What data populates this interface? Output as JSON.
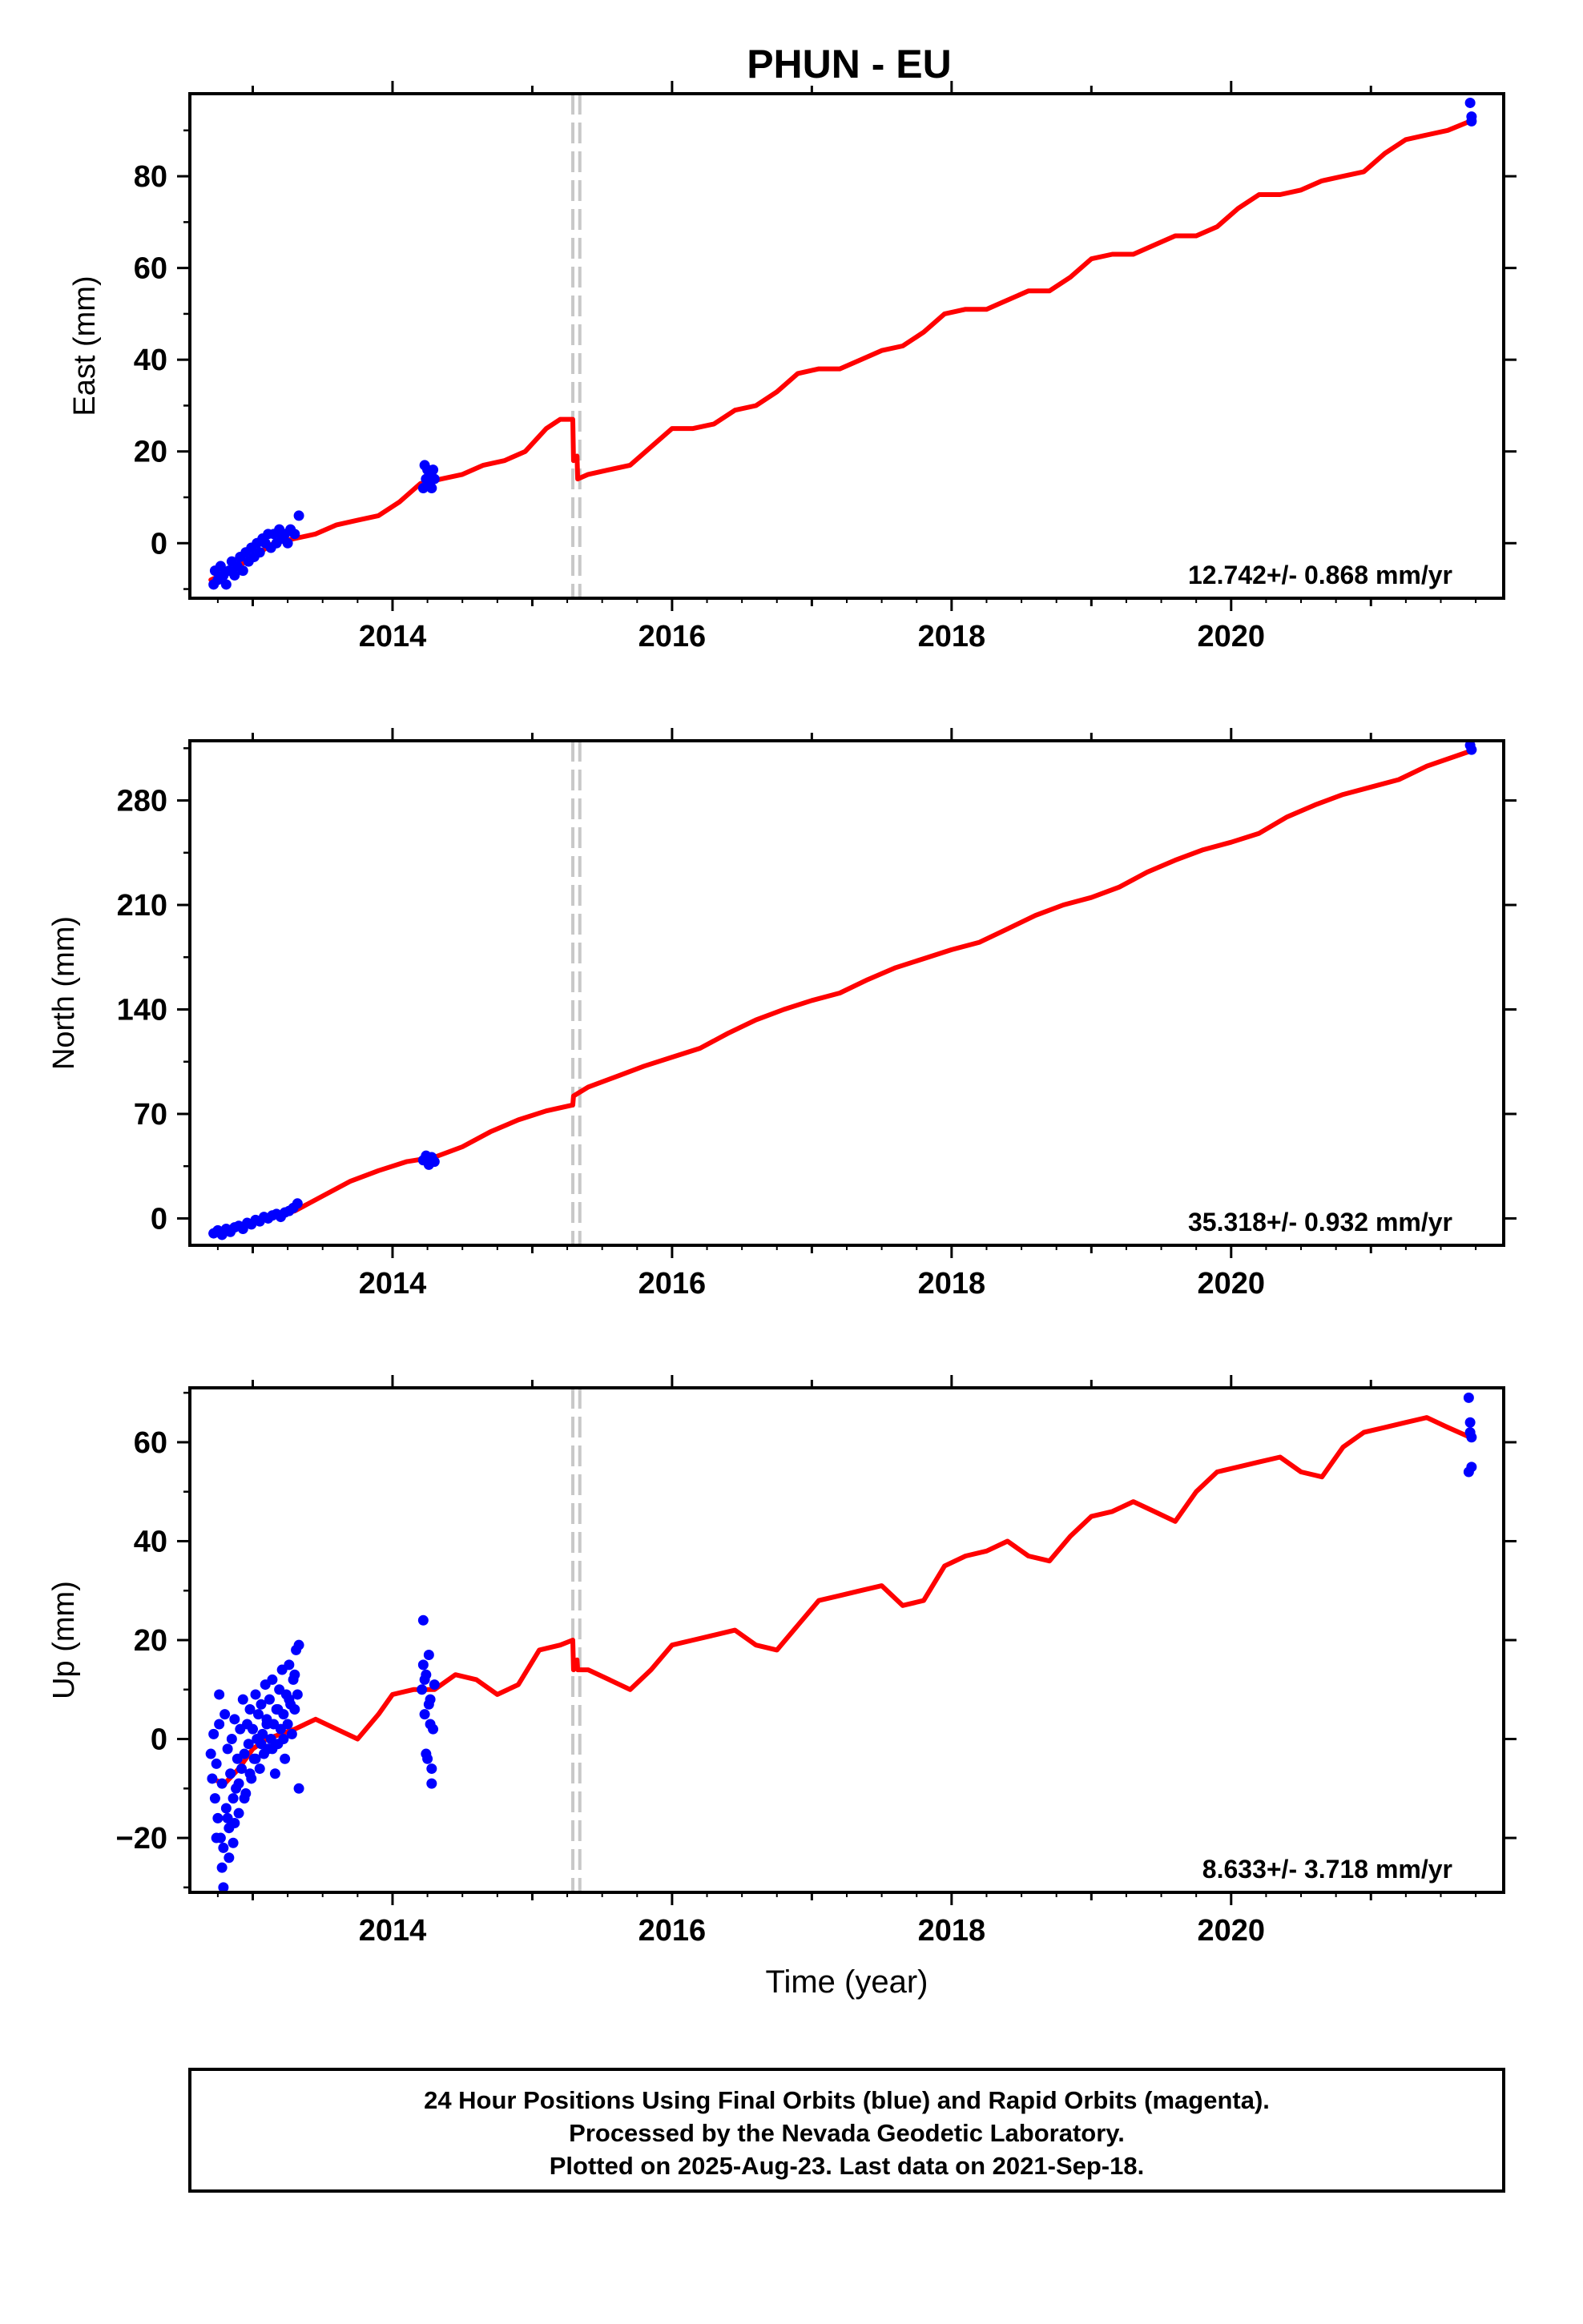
{
  "title": "PHUN - EU",
  "footer": {
    "lines": [
      "24 Hour Positions Using Final Orbits (blue) and Rapid Orbits (magenta).",
      "Processed by the Nevada Geodetic Laboratory.",
      "Plotted on 2025-Aug-23. Last data on 2021-Sep-18."
    ]
  },
  "colors": {
    "fit": "#ff0000",
    "final_orbits": "#0000ff",
    "offset_marker": "#c8c8c8",
    "frame": "#000000"
  },
  "chart_data": [
    {
      "type": "scatter",
      "name": "east",
      "ylabel": "East (mm)",
      "xlabel": "",
      "rate_label": "12.742+/- 0.868 mm/yr",
      "xlim": [
        2012.55,
        2021.95
      ],
      "ylim": [
        -12,
        98
      ],
      "yticks": [
        0,
        20,
        40,
        60,
        80
      ],
      "xticks": [
        2014,
        2016,
        2018,
        2020
      ],
      "offsets": [
        2015.29,
        2015.34
      ],
      "fit": {
        "x": [
          2012.7,
          2012.85,
          2013.0,
          2013.15,
          2013.3,
          2013.45,
          2013.6,
          2013.75,
          2013.9,
          2014.05,
          2014.2,
          2014.35,
          2014.5,
          2014.65,
          2014.8,
          2014.95,
          2015.1,
          2015.2,
          2015.29,
          2015.295,
          2015.32,
          2015.325,
          2015.4,
          2015.55,
          2015.7,
          2015.85,
          2016.0,
          2016.15,
          2016.3,
          2016.45,
          2016.6,
          2016.75,
          2016.9,
          2017.05,
          2017.2,
          2017.35,
          2017.5,
          2017.65,
          2017.8,
          2017.95,
          2018.1,
          2018.25,
          2018.4,
          2018.55,
          2018.7,
          2018.85,
          2019.0,
          2019.15,
          2019.3,
          2019.45,
          2019.6,
          2019.75,
          2019.9,
          2020.05,
          2020.2,
          2020.35,
          2020.5,
          2020.65,
          2020.8,
          2020.95,
          2021.1,
          2021.25,
          2021.4,
          2021.55,
          2021.71
        ],
        "y": [
          -8,
          -6,
          -3,
          0,
          1,
          2,
          4,
          5,
          6,
          9,
          13,
          14,
          15,
          17,
          18,
          20,
          25,
          27,
          27,
          18,
          19,
          14,
          15,
          16,
          17,
          21,
          25,
          25,
          26,
          29,
          30,
          33,
          37,
          38,
          38,
          40,
          42,
          43,
          46,
          50,
          51,
          51,
          53,
          55,
          55,
          58,
          62,
          63,
          63,
          65,
          67,
          67,
          69,
          73,
          76,
          76,
          77,
          79,
          80,
          81,
          85,
          88,
          89,
          90,
          92
        ]
      },
      "points": {
        "x": [
          2012.72,
          2012.73,
          2012.75,
          2012.77,
          2012.79,
          2012.81,
          2012.83,
          2012.85,
          2012.87,
          2012.89,
          2012.91,
          2012.93,
          2012.95,
          2012.97,
          2012.99,
          2013.01,
          2013.03,
          2013.05,
          2013.07,
          2013.09,
          2013.11,
          2013.13,
          2013.15,
          2013.17,
          2013.19,
          2013.21,
          2013.23,
          2013.25,
          2013.27,
          2013.3,
          2013.33,
          2014.22,
          2014.23,
          2014.24,
          2014.25,
          2014.26,
          2014.27,
          2014.28,
          2014.29,
          2014.3,
          2021.71,
          2021.72,
          2021.72
        ],
        "y": [
          -9,
          -6,
          -8,
          -5,
          -7,
          -9,
          -6,
          -4,
          -7,
          -5,
          -3,
          -6,
          -2,
          -4,
          -1,
          -3,
          0,
          -2,
          1,
          0,
          2,
          -1,
          2,
          0,
          3,
          1,
          2,
          0,
          3,
          2,
          6,
          12,
          17,
          14,
          16,
          13,
          15,
          12,
          16,
          14,
          96,
          93,
          92
        ]
      }
    },
    {
      "type": "scatter",
      "name": "north",
      "ylabel": "North (mm)",
      "xlabel": "",
      "rate_label": "35.318+/- 0.932 mm/yr",
      "xlim": [
        2012.55,
        2021.95
      ],
      "ylim": [
        -18,
        320
      ],
      "yticks": [
        0,
        70,
        140,
        210,
        280
      ],
      "xticks": [
        2014,
        2016,
        2018,
        2020
      ],
      "offsets": [
        2015.29,
        2015.34
      ],
      "fit": {
        "x": [
          2012.7,
          2012.9,
          2013.1,
          2013.3,
          2013.5,
          2013.7,
          2013.9,
          2014.1,
          2014.3,
          2014.5,
          2014.7,
          2014.9,
          2015.1,
          2015.29,
          2015.295,
          2015.4,
          2015.6,
          2015.8,
          2016.0,
          2016.2,
          2016.4,
          2016.6,
          2016.8,
          2017.0,
          2017.2,
          2017.4,
          2017.6,
          2017.8,
          2018.0,
          2018.2,
          2018.4,
          2018.6,
          2018.8,
          2019.0,
          2019.2,
          2019.4,
          2019.6,
          2019.8,
          2020.0,
          2020.2,
          2020.4,
          2020.6,
          2020.8,
          2021.0,
          2021.2,
          2021.4,
          2021.71
        ],
        "y": [
          -10,
          -5,
          0,
          5,
          15,
          25,
          32,
          38,
          41,
          48,
          58,
          66,
          72,
          76,
          82,
          88,
          95,
          102,
          108,
          114,
          124,
          133,
          140,
          146,
          151,
          160,
          168,
          174,
          180,
          185,
          194,
          203,
          210,
          215,
          222,
          232,
          240,
          247,
          252,
          258,
          269,
          277,
          284,
          289,
          294,
          303,
          313
        ]
      },
      "points": {
        "x": [
          2012.72,
          2012.75,
          2012.78,
          2012.81,
          2012.84,
          2012.87,
          2012.9,
          2012.93,
          2012.96,
          2012.99,
          2013.02,
          2013.05,
          2013.08,
          2013.11,
          2013.14,
          2013.17,
          2013.2,
          2013.23,
          2013.26,
          2013.29,
          2013.32,
          2014.22,
          2014.24,
          2014.26,
          2014.28,
          2014.3,
          2021.71,
          2021.72
        ],
        "y": [
          -10,
          -8,
          -11,
          -7,
          -9,
          -6,
          -5,
          -7,
          -3,
          -4,
          -1,
          -2,
          1,
          0,
          2,
          3,
          1,
          4,
          5,
          7,
          10,
          39,
          42,
          36,
          41,
          38,
          317,
          314
        ]
      }
    },
    {
      "type": "scatter",
      "name": "up",
      "ylabel": "Up (mm)",
      "xlabel": "Time (year)",
      "rate_label": "8.633+/- 3.718 mm/yr",
      "xlim": [
        2012.55,
        2021.95
      ],
      "ylim": [
        -31,
        71
      ],
      "yticks": [
        -20,
        0,
        20,
        40,
        60
      ],
      "xticks": [
        2014,
        2016,
        2018,
        2020
      ],
      "offsets": [
        2015.29,
        2015.34
      ],
      "fit": {
        "x": [
          2012.7,
          2012.8,
          2012.9,
          2013.0,
          2013.1,
          2013.2,
          2013.3,
          2013.45,
          2013.6,
          2013.75,
          2013.9,
          2014.0,
          2014.15,
          2014.3,
          2014.45,
          2014.6,
          2014.75,
          2014.9,
          2015.05,
          2015.2,
          2015.29,
          2015.295,
          2015.32,
          2015.325,
          2015.4,
          2015.55,
          2015.7,
          2015.85,
          2016.0,
          2016.15,
          2016.3,
          2016.45,
          2016.6,
          2016.75,
          2016.9,
          2017.05,
          2017.2,
          2017.35,
          2017.5,
          2017.65,
          2017.8,
          2017.95,
          2018.1,
          2018.25,
          2018.4,
          2018.55,
          2018.7,
          2018.85,
          2019.0,
          2019.15,
          2019.3,
          2019.45,
          2019.6,
          2019.75,
          2019.9,
          2020.05,
          2020.2,
          2020.35,
          2020.5,
          2020.65,
          2020.8,
          2020.95,
          2021.1,
          2021.25,
          2021.4,
          2021.55,
          2021.71
        ],
        "y": [
          -8,
          -9,
          -6,
          -2,
          0,
          1,
          2,
          4,
          2,
          0,
          5,
          9,
          10,
          10,
          13,
          12,
          9,
          11,
          18,
          19,
          20,
          14,
          16,
          14,
          14,
          12,
          10,
          14,
          19,
          20,
          21,
          22,
          19,
          18,
          23,
          28,
          29,
          30,
          31,
          27,
          28,
          35,
          37,
          38,
          40,
          37,
          36,
          41,
          45,
          46,
          48,
          46,
          44,
          50,
          54,
          55,
          56,
          57,
          54,
          53,
          59,
          62,
          63,
          64,
          65,
          63,
          61
        ]
      },
      "points": {
        "x": [
          2012.7,
          2012.71,
          2012.72,
          2012.73,
          2012.74,
          2012.75,
          2012.76,
          2012.77,
          2012.78,
          2012.79,
          2012.8,
          2012.81,
          2012.82,
          2012.83,
          2012.84,
          2012.85,
          2012.86,
          2012.87,
          2012.88,
          2012.89,
          2012.9,
          2012.91,
          2012.92,
          2012.93,
          2012.94,
          2012.95,
          2012.96,
          2012.97,
          2012.98,
          2012.99,
          2013.0,
          2013.01,
          2013.02,
          2013.03,
          2013.04,
          2013.05,
          2013.06,
          2013.07,
          2013.08,
          2013.09,
          2013.1,
          2013.11,
          2013.12,
          2013.13,
          2013.14,
          2013.15,
          2013.16,
          2013.17,
          2013.18,
          2013.19,
          2013.2,
          2013.21,
          2013.22,
          2013.23,
          2013.24,
          2013.25,
          2013.26,
          2013.27,
          2013.28,
          2013.29,
          2013.3,
          2013.31,
          2013.32,
          2013.33,
          2012.74,
          2012.78,
          2012.82,
          2012.86,
          2012.9,
          2012.94,
          2012.98,
          2013.02,
          2013.06,
          2013.1,
          2013.14,
          2013.18,
          2013.22,
          2013.26,
          2013.3,
          2013.33,
          2012.76,
          2012.79,
          2012.83,
          2012.87,
          2014.21,
          2014.22,
          2014.23,
          2014.24,
          2014.25,
          2014.26,
          2014.27,
          2014.28,
          2014.29,
          2014.3,
          2014.22,
          2014.24,
          2014.26,
          2014.28,
          2014.23,
          2014.27,
          2021.7,
          2021.71,
          2021.72,
          2021.72,
          2021.71,
          2021.7
        ],
        "y": [
          -3,
          -8,
          1,
          -12,
          -5,
          -16,
          3,
          -20,
          -9,
          -22,
          5,
          -14,
          -2,
          -18,
          -7,
          0,
          -12,
          4,
          -10,
          -4,
          -15,
          2,
          -6,
          8,
          -3,
          -11,
          3,
          -1,
          6,
          -8,
          2,
          -4,
          9,
          0,
          5,
          -6,
          7,
          1,
          -3,
          11,
          4,
          -2,
          8,
          0,
          12,
          3,
          -7,
          6,
          -1,
          10,
          2,
          14,
          5,
          -4,
          9,
          3,
          15,
          7,
          1,
          12,
          6,
          18,
          9,
          -10,
          -20,
          -26,
          -16,
          -21,
          -9,
          -12,
          -7,
          -4,
          -1,
          3,
          -2,
          6,
          0,
          8,
          13,
          19,
          9,
          -30,
          -24,
          -17,
          10,
          24,
          5,
          13,
          -4,
          17,
          8,
          -9,
          2,
          11,
          15,
          -3,
          7,
          -6,
          12,
          3,
          69,
          64,
          61,
          55,
          62,
          54
        ]
      }
    }
  ]
}
